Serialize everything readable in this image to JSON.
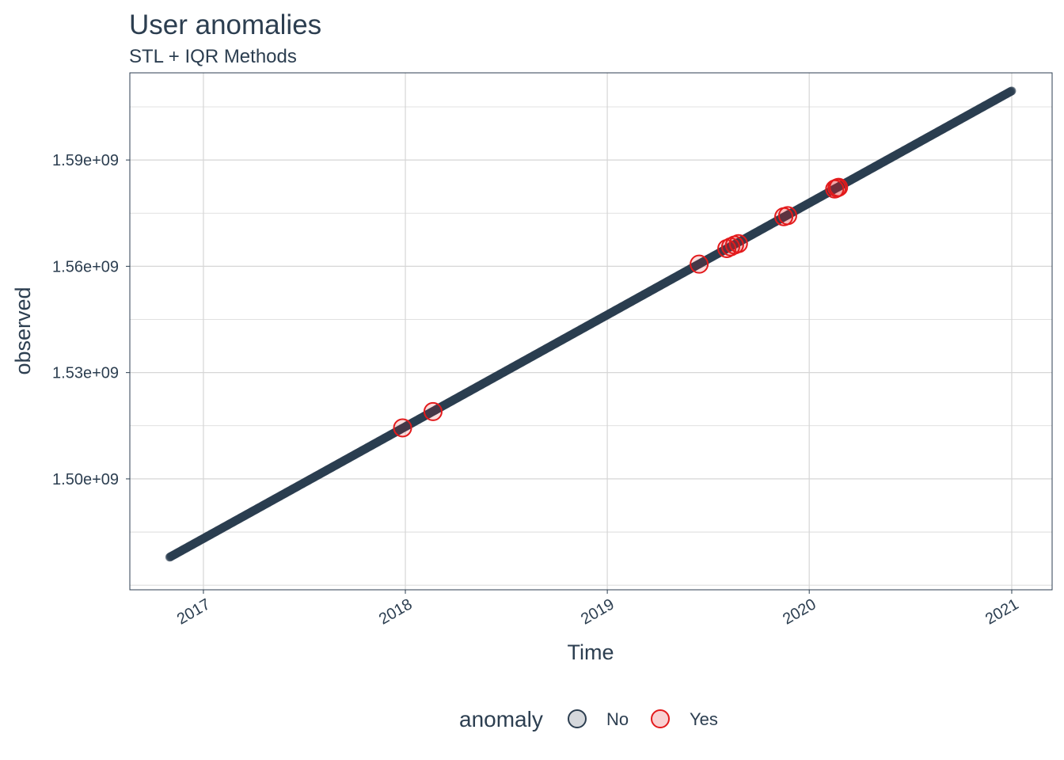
{
  "title": "User anomalies",
  "subtitle": "STL + IQR Methods",
  "colors": {
    "normal": "#2c3e50",
    "anomaly": "#e31a1c",
    "grid": "#d6d6d6",
    "panel_border": "#2c3e50"
  },
  "legend": {
    "title": "anomaly",
    "items": [
      {
        "label": "No",
        "color": "#2c3e50"
      },
      {
        "label": "Yes",
        "color": "#e31a1c"
      }
    ],
    "placement": "bottom"
  },
  "chart_data": {
    "type": "scatter",
    "title": "User anomalies",
    "subtitle": "STL + IQR Methods",
    "xlabel": "Time",
    "ylabel": "observed",
    "x_type": "date",
    "xlim": [
      "2016-08-21",
      "2021-03-15"
    ],
    "ylim": [
      1468700000,
      1614600000
    ],
    "x_ticks": [
      "2017",
      "2018",
      "2019",
      "2020",
      "2021"
    ],
    "x_tick_values": [
      "2017-01-01",
      "2018-01-01",
      "2019-01-01",
      "2020-01-01",
      "2021-01-01"
    ],
    "y_ticks": [
      "1.50e+09",
      "1.53e+09",
      "1.56e+09",
      "1.59e+09"
    ],
    "y_tick_values": [
      1500000000,
      1530000000,
      1560000000,
      1590000000
    ],
    "grid": true,
    "series": [
      {
        "name": "No",
        "style": "dense filled points",
        "x_start": "2016-11-01",
        "x_end": "2021-01-01",
        "y_start": 1477900000,
        "y_end": 1609500000
      },
      {
        "name": "Yes",
        "style": "open circles",
        "points": [
          {
            "x": "2017-12-27",
            "y": 1514400000
          },
          {
            "x": "2018-02-20",
            "y": 1519000000
          },
          {
            "x": "2019-06-16",
            "y": 1560600000
          },
          {
            "x": "2019-08-05",
            "y": 1565000000
          },
          {
            "x": "2019-08-12",
            "y": 1565500000
          },
          {
            "x": "2019-08-19",
            "y": 1566000000
          },
          {
            "x": "2019-08-26",
            "y": 1566400000
          },
          {
            "x": "2019-11-16",
            "y": 1574000000
          },
          {
            "x": "2019-11-23",
            "y": 1574300000
          },
          {
            "x": "2020-02-16",
            "y": 1581800000
          },
          {
            "x": "2020-02-20",
            "y": 1582100000
          },
          {
            "x": "2020-02-23",
            "y": 1582300000
          }
        ]
      }
    ]
  }
}
